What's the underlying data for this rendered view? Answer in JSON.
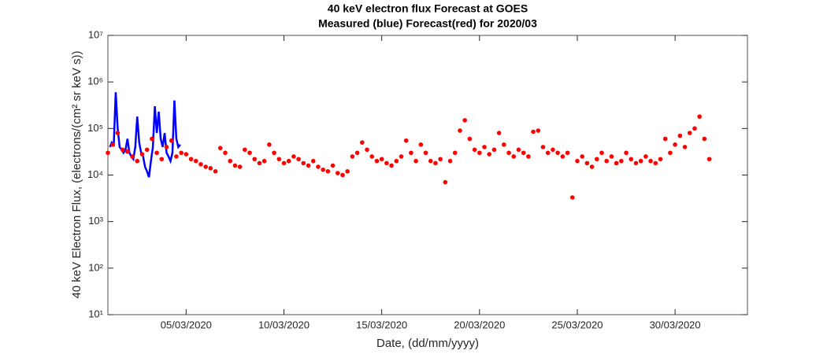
{
  "chart_data": {
    "type": "line",
    "title": "40 keV electron flux Forecast at GOES",
    "subtitle": "Measured (blue) Forecast(red) for 2020/03",
    "x_label": "Date, (dd/mm/yyyy)",
    "y_label": "40 keV Electron Flux, (electrons/(cm² sr keV s))",
    "y_scale": "log",
    "xlim": [
      0,
      32.7
    ],
    "xticks": [
      {
        "value": 4,
        "label": "05/03/2020"
      },
      {
        "value": 9,
        "label": "10/03/2020"
      },
      {
        "value": 14,
        "label": "15/03/2020"
      },
      {
        "value": 19,
        "label": "20/03/2020"
      },
      {
        "value": 24,
        "label": "25/03/2020"
      },
      {
        "value": 29,
        "label": "30/03/2020"
      }
    ],
    "ylim": [
      10,
      10000000
    ],
    "yticks": [
      {
        "value": 10,
        "label": "10¹"
      },
      {
        "value": 100,
        "label": "10²"
      },
      {
        "value": 1000,
        "label": "10³"
      },
      {
        "value": 10000,
        "label": "10⁴"
      },
      {
        "value": 100000,
        "label": "10⁵"
      },
      {
        "value": 1000000,
        "label": "10⁶"
      },
      {
        "value": 10000000,
        "label": "10⁷"
      }
    ],
    "series": [
      {
        "type": "line",
        "color": "#0000ff",
        "x": [
          0.1,
          0.2,
          0.3,
          0.4,
          0.5,
          0.6,
          0.7,
          0.8,
          0.9,
          1.0,
          1.1,
          1.2,
          1.3,
          1.4,
          1.5,
          1.6,
          1.7,
          1.8,
          1.9,
          2.0,
          2.1,
          2.2,
          2.3,
          2.4,
          2.5,
          2.6,
          2.7,
          2.8,
          2.9,
          3.0,
          3.1,
          3.2,
          3.3,
          3.4,
          3.5,
          3.6,
          3.7
        ],
        "values": [
          40000,
          50000,
          45000,
          600000,
          100000,
          40000,
          35000,
          30000,
          35000,
          60000,
          30000,
          25000,
          22000,
          40000,
          180000,
          50000,
          30000,
          25000,
          15000,
          12000,
          9000,
          20000,
          40000,
          300000,
          80000,
          230000,
          60000,
          40000,
          80000,
          30000,
          25000,
          20000,
          30000,
          400000,
          60000,
          40000,
          45000
        ]
      },
      {
        "type": "scatter",
        "color": "#ff0000",
        "x": [
          0,
          0.25,
          0.5,
          0.75,
          1,
          1.25,
          1.5,
          1.75,
          2,
          2.25,
          2.5,
          2.75,
          3,
          3.25,
          3.5,
          3.75,
          4,
          4.25,
          4.5,
          4.75,
          5,
          5.25,
          5.5,
          5.75,
          6,
          6.25,
          6.5,
          6.75,
          7,
          7.25,
          7.5,
          7.75,
          8,
          8.25,
          8.5,
          8.75,
          9,
          9.25,
          9.5,
          9.75,
          10,
          10.25,
          10.5,
          10.75,
          11,
          11.25,
          11.5,
          11.75,
          12,
          12.25,
          12.5,
          12.75,
          13,
          13.25,
          13.5,
          13.75,
          14,
          14.25,
          14.5,
          14.75,
          15,
          15.25,
          15.5,
          15.75,
          16,
          16.25,
          16.5,
          16.75,
          17,
          17.25,
          17.5,
          17.75,
          18,
          18.25,
          18.5,
          18.75,
          19,
          19.25,
          19.5,
          19.75,
          20,
          20.25,
          20.5,
          20.75,
          21,
          21.25,
          21.5,
          21.75,
          22,
          22.25,
          22.5,
          22.75,
          23,
          23.25,
          23.5,
          23.75,
          24,
          24.25,
          24.5,
          24.75,
          25,
          25.25,
          25.5,
          25.75,
          26,
          26.25,
          26.5,
          26.75,
          27,
          27.25,
          27.5,
          27.75,
          28,
          28.25,
          28.5,
          28.75,
          29,
          29.25,
          29.5,
          29.75,
          30,
          30.25,
          30.5,
          30.75
        ],
        "values": [
          30000,
          45000,
          80000,
          35000,
          32000,
          25000,
          20000,
          28000,
          35000,
          60000,
          30000,
          22000,
          40000,
          55000,
          25000,
          30000,
          28000,
          22000,
          20000,
          17000,
          15000,
          14000,
          12000,
          38000,
          30000,
          20000,
          16000,
          15000,
          35000,
          30000,
          22000,
          18000,
          20000,
          45000,
          30000,
          22000,
          18000,
          20000,
          25000,
          22000,
          18000,
          16000,
          20000,
          15000,
          13000,
          12000,
          16000,
          11000,
          10000,
          12000,
          25000,
          30000,
          50000,
          35000,
          25000,
          20000,
          22000,
          18000,
          16000,
          20000,
          25000,
          55000,
          30000,
          20000,
          45000,
          30000,
          20000,
          18000,
          22000,
          7000,
          20000,
          30000,
          90000,
          150000,
          60000,
          35000,
          30000,
          40000,
          28000,
          35000,
          80000,
          45000,
          30000,
          25000,
          35000,
          30000,
          25000,
          85000,
          90000,
          40000,
          30000,
          35000,
          30000,
          25000,
          30000,
          3300,
          20000,
          25000,
          18000,
          15000,
          22000,
          30000,
          20000,
          25000,
          18000,
          20000,
          30000,
          22000,
          18000,
          20000,
          25000,
          20000,
          18000,
          22000,
          60000,
          30000,
          45000,
          70000,
          40000,
          80000,
          100000,
          180000,
          60000,
          22000
        ]
      }
    ]
  }
}
